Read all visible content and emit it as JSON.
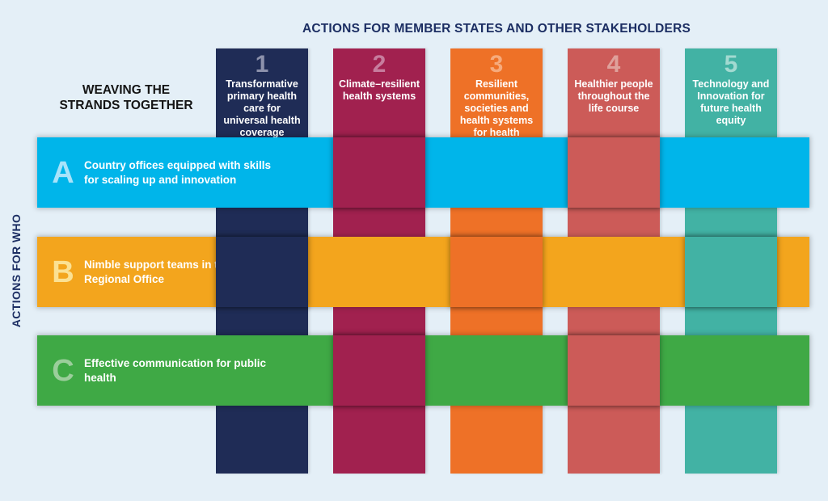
{
  "title": "ACTIONS FOR MEMBER STATES AND OTHER STAKEHOLDERS",
  "left_header": "WEAVING THE\nSTRANDS TOGETHER",
  "side_label": "ACTIONS FOR WHO",
  "columns": [
    {
      "number": "1",
      "label": "Transformative primary health care for universal health coverage",
      "color": "#1f2c56",
      "number_color": "#8d92ac"
    },
    {
      "number": "2",
      "label": "Climate–resilient health systems",
      "color": "#a1214f",
      "number_color": "#c77d9e"
    },
    {
      "number": "3",
      "label": "Resilient communities, societies and health systems for health security",
      "color": "#ee7127",
      "number_color": "#f6ab7d"
    },
    {
      "number": "4",
      "label": "Healthier people throughout the life course",
      "color": "#cc5b58",
      "number_color": "#dfa19b"
    },
    {
      "number": "5",
      "label": "Technology and Innovation for future health equity",
      "color": "#42b2a4",
      "number_color": "#a2dad1"
    }
  ],
  "rows": [
    {
      "letter": "A",
      "label": "Country offices equipped with skills for scaling up and innovation",
      "color": "#00b5ea",
      "letter_color": "#a8e3fa"
    },
    {
      "letter": "B",
      "label": "Nimble support teams in the Regional Office",
      "color": "#f3a51d",
      "letter_color": "#fbe193"
    },
    {
      "letter": "C",
      "label": "Effective communication for public health",
      "color": "#3fa945",
      "letter_color": "#9bce9b"
    }
  ],
  "colors": {
    "background": "#e4eff7",
    "title": "#1c2e63",
    "left_header": "#141414"
  }
}
